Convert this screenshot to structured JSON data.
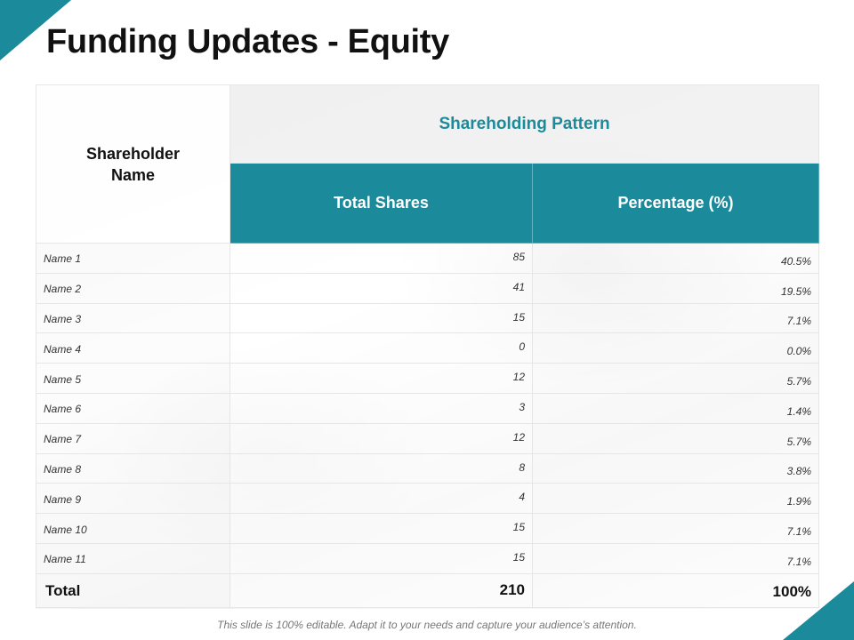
{
  "title": "Funding Updates - Equity",
  "header": {
    "name_label": "Shareholder Name",
    "group_label": "Shareholding Pattern",
    "shares_label": "Total Shares",
    "percent_label": "Percentage (%)"
  },
  "rows": [
    {
      "name": "Name 1",
      "shares": "85",
      "percent": "40.5%"
    },
    {
      "name": "Name 2",
      "shares": "41",
      "percent": "19.5%"
    },
    {
      "name": "Name 3",
      "shares": "15",
      "percent": "7.1%"
    },
    {
      "name": "Name 4",
      "shares": "0",
      "percent": "0.0%"
    },
    {
      "name": "Name 5",
      "shares": "12",
      "percent": "5.7%"
    },
    {
      "name": "Name 6",
      "shares": "3",
      "percent": "1.4%"
    },
    {
      "name": "Name 7",
      "shares": "12",
      "percent": "5.7%"
    },
    {
      "name": "Name 8",
      "shares": "8",
      "percent": "3.8%"
    },
    {
      "name": "Name 9",
      "shares": "4",
      "percent": "1.9%"
    },
    {
      "name": "Name 10",
      "shares": "15",
      "percent": "7.1%"
    },
    {
      "name": "Name 11",
      "shares": "15",
      "percent": "7.1%"
    }
  ],
  "total": {
    "label": "Total",
    "shares": "210",
    "percent": "100%"
  },
  "footer": "This slide is 100% editable. Adapt it to your needs and capture your audience’s attention.",
  "colors": {
    "accent": "#1b8a9b"
  }
}
